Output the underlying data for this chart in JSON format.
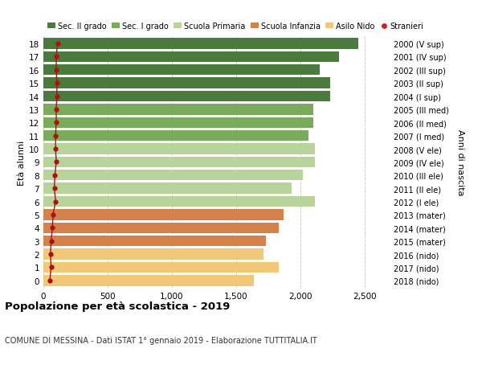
{
  "ages": [
    18,
    17,
    16,
    15,
    14,
    13,
    12,
    11,
    10,
    9,
    8,
    7,
    6,
    5,
    4,
    3,
    2,
    1,
    0
  ],
  "bar_values": [
    2450,
    2300,
    2150,
    2230,
    2230,
    2100,
    2100,
    2060,
    2110,
    2110,
    2020,
    1930,
    2110,
    1870,
    1830,
    1730,
    1710,
    1830,
    1640
  ],
  "stranieri_values": [
    110,
    100,
    100,
    105,
    105,
    100,
    100,
    95,
    95,
    100,
    90,
    85,
    95,
    75,
    70,
    60,
    55,
    60,
    50
  ],
  "bar_colors": [
    "#4a7a3d",
    "#4a7a3d",
    "#4a7a3d",
    "#4a7a3d",
    "#4a7a3d",
    "#7aab5a",
    "#7aab5a",
    "#7aab5a",
    "#b8d49a",
    "#b8d49a",
    "#b8d49a",
    "#b8d49a",
    "#b8d49a",
    "#d4824a",
    "#d4824a",
    "#d4824a",
    "#f0c878",
    "#f0c878",
    "#f0c878"
  ],
  "right_labels": [
    "2000 (V sup)",
    "2001 (IV sup)",
    "2002 (III sup)",
    "2003 (II sup)",
    "2004 (I sup)",
    "2005 (III med)",
    "2006 (II med)",
    "2007 (I med)",
    "2008 (V ele)",
    "2009 (IV ele)",
    "2010 (III ele)",
    "2011 (II ele)",
    "2012 (I ele)",
    "2013 (mater)",
    "2014 (mater)",
    "2015 (mater)",
    "2016 (nido)",
    "2017 (nido)",
    "2018 (nido)"
  ],
  "legend_labels": [
    "Sec. II grado",
    "Sec. I grado",
    "Scuola Primaria",
    "Scuola Infanzia",
    "Asilo Nido",
    "Stranieri"
  ],
  "legend_colors": [
    "#4a7a3d",
    "#7aab5a",
    "#b8d49a",
    "#d4824a",
    "#f0c878",
    "#cc2222"
  ],
  "ylabel": "Età alunni",
  "right_ylabel": "Anni di nascita",
  "title": "Popolazione per età scolastica - 2019",
  "subtitle": "COMUNE DI MESSINA - Dati ISTAT 1° gennaio 2019 - Elaborazione TUTTITALIA.IT",
  "xlim": [
    0,
    2700
  ],
  "xticks": [
    0,
    500,
    1000,
    1500,
    2000,
    2500
  ],
  "background_color": "#ffffff",
  "bar_height": 0.82,
  "dot_color": "#aa1111",
  "grid_color": "#cccccc"
}
